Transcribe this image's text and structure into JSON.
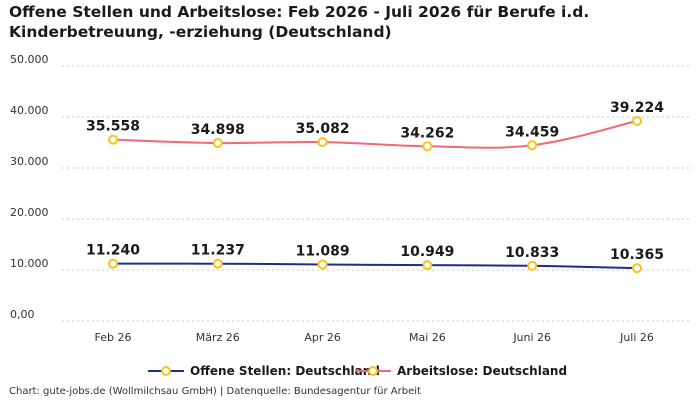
{
  "chart_data": {
    "type": "line",
    "title": "Offene Stellen und Arbeitslose: Feb 2026 - Juli 2026 für Berufe i.d. Kinderbetreuung, -erziehung (Deutschland)",
    "categories": [
      "Feb 26",
      "März 26",
      "Apr 26",
      "Mai 26",
      "Juni 26",
      "Juli 26"
    ],
    "series": [
      {
        "name": "Offene Stellen: Deutschland",
        "values": [
          11240,
          11237,
          11089,
          10949,
          10833,
          10365
        ],
        "labels": [
          "11.240",
          "11.237",
          "11.089",
          "10.949",
          "10.833",
          "10.365"
        ],
        "color": "#1f2d8a"
      },
      {
        "name": "Arbeitslose: Deutschland",
        "values": [
          35558,
          34898,
          35082,
          34262,
          34459,
          39224
        ],
        "labels": [
          "35.558",
          "34.898",
          "35.082",
          "34.262",
          "34.459",
          "39.224"
        ],
        "color": "#f0687a"
      }
    ],
    "ylim": [
      0,
      50000
    ],
    "yticks": [
      0,
      10000,
      20000,
      30000,
      40000,
      50000
    ],
    "ytick_labels": [
      "0,00",
      "10.000",
      "20.000",
      "30.000",
      "40.000",
      "50.000"
    ],
    "grid": true,
    "legend_position": "bottom-center",
    "marker_color": "#f5c518",
    "source": "Chart: gute-jobs.de (Wollmilchsau GmbH) | Datenquelle: Bundesagentur für Arbeit"
  }
}
